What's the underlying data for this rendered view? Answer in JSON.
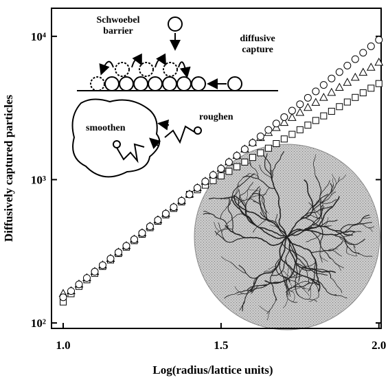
{
  "chart_data": {
    "type": "scatter",
    "xlabel": "Log(radius/lattice units)",
    "ylabel": "Diffusively captured particles",
    "annotations": [
      "Schwoebel barrier",
      "diffusive capture",
      "smoothen",
      "roughen"
    ],
    "x": [
      1.0,
      1.025,
      1.05,
      1.075,
      1.1,
      1.125,
      1.15,
      1.175,
      1.2,
      1.225,
      1.25,
      1.275,
      1.3,
      1.325,
      1.35,
      1.375,
      1.4,
      1.425,
      1.45,
      1.475,
      1.5,
      1.525,
      1.55,
      1.575,
      1.6,
      1.625,
      1.65,
      1.675,
      1.7,
      1.725,
      1.75,
      1.775,
      1.8,
      1.825,
      1.85,
      1.875,
      1.9,
      1.925,
      1.95,
      1.975,
      2.0
    ],
    "series": [
      {
        "marker": "square",
        "color": "#000000",
        "values": [
          140,
          160,
          180,
          200,
          222,
          248,
          275,
          305,
          338,
          375,
          416,
          462,
          512,
          568,
          630,
          700,
          789,
          850,
          915,
          986,
          1062,
          1143,
          1231,
          1326,
          1428,
          1538,
          1657,
          1784,
          1922,
          2070,
          2229,
          2401,
          2586,
          2785,
          2999,
          3230,
          3479,
          3747,
          4035,
          4346,
          4681
        ]
      },
      {
        "marker": "triangle",
        "color": "#000000",
        "values": [
          160,
          167,
          186,
          206,
          228,
          253,
          281,
          311,
          345,
          383,
          424,
          471,
          522,
          579,
          642,
          712,
          789,
          875,
          971,
          1077,
          1194,
          1324,
          1468,
          1628,
          1806,
          1958,
          2123,
          2301,
          2494,
          2704,
          2931,
          3177,
          3444,
          3733,
          4047,
          4387,
          4755,
          5155,
          5588,
          6057,
          6566
        ]
      },
      {
        "marker": "circle",
        "color": "#000000",
        "values": [
          151,
          167,
          186,
          206,
          228,
          253,
          281,
          311,
          345,
          383,
          424,
          471,
          522,
          579,
          642,
          712,
          789,
          875,
          971,
          1077,
          1194,
          1324,
          1468,
          1628,
          1806,
          2003,
          2221,
          2463,
          2731,
          3029,
          3359,
          3725,
          4131,
          4581,
          5081,
          5634,
          6249,
          6930,
          7685,
          8523,
          9452
        ]
      }
    ],
    "xlim": [
      0.963,
      2.007
    ],
    "xticks": [
      {
        "value": 1.0,
        "label": "1.0"
      },
      {
        "value": 1.5,
        "label": "1.5"
      },
      {
        "value": 2.0,
        "label": "2.0"
      }
    ],
    "ylim": [
      91.6,
      15700
    ],
    "log_y": true,
    "yticks": [
      {
        "value": 100,
        "label": "10²"
      },
      {
        "value": 1000,
        "label": "10³"
      },
      {
        "value": 10000,
        "label": "10⁴"
      }
    ]
  }
}
